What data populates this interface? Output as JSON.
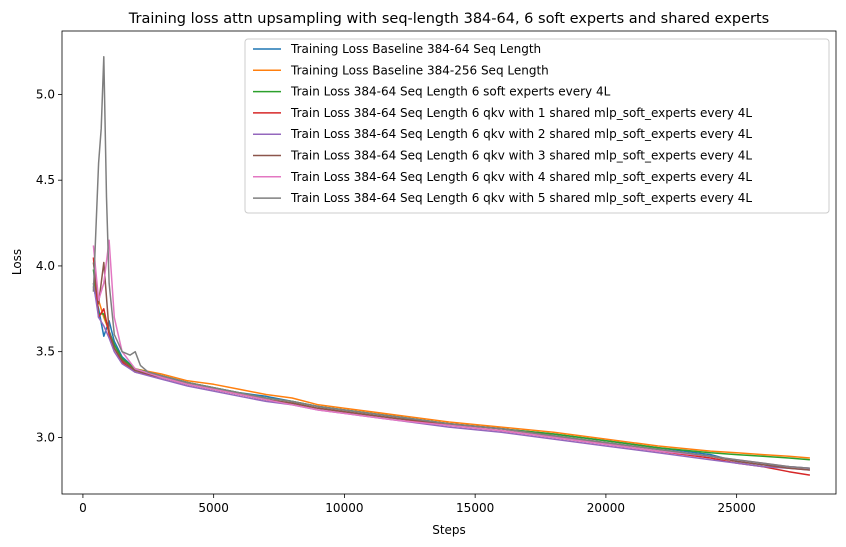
{
  "chart_data": {
    "type": "line",
    "title": "Training loss attn upsampling with seq-length 384-64, 6 soft experts and shared experts",
    "xlabel": "Steps",
    "ylabel": "Loss",
    "xlim": [
      -800,
      28800
    ],
    "ylim": [
      2.67,
      5.37
    ],
    "xticks": [
      0,
      5000,
      10000,
      15000,
      20000,
      25000
    ],
    "yticks": [
      3.0,
      3.5,
      4.0,
      4.5,
      5.0
    ],
    "xtick_labels": [
      "0",
      "5000",
      "10000",
      "15000",
      "20000",
      "25000"
    ],
    "ytick_labels": [
      "3.0",
      "3.5",
      "4.0",
      "4.5",
      "5.0"
    ],
    "grid": false,
    "legend_position": "top-right",
    "series": [
      {
        "name": "Training Loss Baseline 384-64 Seq Length",
        "color": "#1f77b4",
        "x": [
          400,
          600,
          800,
          1000,
          1200,
          1500,
          2000,
          3000,
          4000,
          5000,
          6000,
          7000,
          8000,
          9000,
          10000,
          12000,
          14000,
          16000,
          18000,
          20000,
          22000,
          24000,
          25000,
          26000,
          27000,
          27800
        ],
        "y": [
          3.88,
          3.75,
          3.59,
          3.68,
          3.56,
          3.47,
          3.4,
          3.36,
          3.32,
          3.29,
          3.26,
          3.24,
          3.21,
          3.18,
          3.16,
          3.12,
          3.08,
          3.05,
          3.02,
          2.98,
          2.94,
          2.9,
          2.86,
          2.84,
          2.83,
          2.82
        ]
      },
      {
        "name": "Training Loss Baseline 384-256 Seq Length",
        "color": "#ff7f0e",
        "x": [
          400,
          600,
          800,
          1000,
          1200,
          1500,
          2000,
          3000,
          4000,
          5000,
          6000,
          7000,
          8000,
          9000,
          10000,
          12000,
          14000,
          16000,
          18000,
          20000,
          22000,
          24000,
          25000,
          26000,
          27000,
          27800
        ],
        "y": [
          3.9,
          3.8,
          3.7,
          3.62,
          3.52,
          3.45,
          3.4,
          3.37,
          3.33,
          3.31,
          3.28,
          3.25,
          3.23,
          3.19,
          3.17,
          3.13,
          3.09,
          3.06,
          3.03,
          2.99,
          2.95,
          2.92,
          2.91,
          2.9,
          2.89,
          2.88
        ]
      },
      {
        "name": "Train Loss 384-64 Seq Length 6 soft experts every 4L",
        "color": "#2ca02c",
        "x": [
          400,
          600,
          800,
          1000,
          1200,
          1500,
          2000,
          3000,
          4000,
          5000,
          6000,
          7000,
          8000,
          9000,
          10000,
          12000,
          14000,
          16000,
          18000,
          20000,
          22000,
          24000,
          25000,
          26000,
          27000,
          27800
        ],
        "y": [
          3.98,
          3.72,
          3.72,
          3.62,
          3.54,
          3.46,
          3.4,
          3.36,
          3.32,
          3.29,
          3.26,
          3.23,
          3.21,
          3.18,
          3.16,
          3.12,
          3.08,
          3.05,
          3.02,
          2.98,
          2.94,
          2.91,
          2.9,
          2.89,
          2.88,
          2.87
        ]
      },
      {
        "name": "Train Loss 384-64 Seq Length 6 qkv with 1 shared mlp_soft_experts every 4L",
        "color": "#d62728",
        "x": [
          400,
          600,
          800,
          1000,
          1200,
          1500,
          2000,
          3000,
          4000,
          5000,
          6000,
          7000,
          8000,
          9000,
          10000,
          12000,
          14000,
          16000,
          18000,
          20000,
          22000,
          24000,
          25000,
          26000,
          27000,
          27800
        ],
        "y": [
          4.05,
          3.7,
          3.75,
          3.6,
          3.52,
          3.44,
          3.38,
          3.35,
          3.31,
          3.28,
          3.25,
          3.22,
          3.2,
          3.17,
          3.15,
          3.11,
          3.07,
          3.04,
          3.0,
          2.96,
          2.92,
          2.88,
          2.85,
          2.83,
          2.8,
          2.78
        ]
      },
      {
        "name": "Train Loss 384-64 Seq Length 6 qkv with 2 shared mlp_soft_experts every 4L",
        "color": "#9467bd",
        "x": [
          400,
          600,
          800,
          1000,
          1200,
          1500,
          2000,
          3000,
          4000,
          5000,
          6000,
          7000,
          8000,
          9000,
          10000,
          12000,
          14000,
          16000,
          18000,
          20000,
          22000,
          24000,
          25000,
          26000,
          27000,
          27800
        ],
        "y": [
          3.9,
          3.7,
          3.65,
          3.58,
          3.5,
          3.43,
          3.38,
          3.34,
          3.3,
          3.27,
          3.24,
          3.21,
          3.19,
          3.16,
          3.14,
          3.1,
          3.06,
          3.03,
          2.99,
          2.95,
          2.91,
          2.87,
          2.85,
          2.83,
          2.82,
          2.81
        ]
      },
      {
        "name": "Train Loss 384-64 Seq Length 6 qkv with 3 shared mlp_soft_experts every 4L",
        "color": "#8c564b",
        "x": [
          400,
          600,
          800,
          1000,
          1200,
          1500,
          2000,
          3000,
          4000,
          5000,
          6000,
          7000,
          8000,
          9000,
          10000,
          12000,
          14000,
          16000,
          18000,
          20000,
          22000,
          24000,
          25000,
          26000,
          27000,
          27800
        ],
        "y": [
          4.02,
          3.78,
          4.02,
          3.62,
          3.52,
          3.45,
          3.39,
          3.35,
          3.31,
          3.28,
          3.25,
          3.22,
          3.2,
          3.17,
          3.15,
          3.11,
          3.08,
          3.05,
          3.01,
          2.97,
          2.93,
          2.89,
          2.86,
          2.84,
          2.82,
          2.81
        ]
      },
      {
        "name": "Train Loss 384-64 Seq Length 6 qkv with 4 shared mlp_soft_experts every 4L",
        "color": "#e377c2",
        "x": [
          400,
          600,
          800,
          1000,
          1200,
          1500,
          2000,
          3000,
          4000,
          5000,
          6000,
          7000,
          8000,
          9000,
          10000,
          12000,
          14000,
          16000,
          18000,
          20000,
          22000,
          24000,
          25000,
          26000,
          27000,
          27800
        ],
        "y": [
          4.12,
          3.8,
          3.9,
          4.15,
          3.7,
          3.5,
          3.4,
          3.35,
          3.31,
          3.28,
          3.25,
          3.22,
          3.19,
          3.16,
          3.14,
          3.1,
          3.07,
          3.04,
          3.0,
          2.96,
          2.92,
          2.89,
          2.87,
          2.85,
          2.83,
          2.82
        ]
      },
      {
        "name": "Train Loss 384-64 Seq Length 6 qkv with 5 shared mlp_soft_experts every 4L",
        "color": "#7f7f7f",
        "x": [
          400,
          600,
          700,
          800,
          900,
          1000,
          1200,
          1500,
          1800,
          2000,
          2200,
          2500,
          3000,
          4000,
          5000,
          6000,
          7000,
          8000,
          9000,
          10000,
          12000,
          14000,
          16000,
          18000,
          20000,
          22000,
          24000,
          25000,
          26000,
          27000,
          27800
        ],
        "y": [
          3.85,
          4.6,
          4.8,
          5.22,
          4.4,
          3.9,
          3.6,
          3.5,
          3.48,
          3.5,
          3.42,
          3.38,
          3.36,
          3.32,
          3.29,
          3.26,
          3.23,
          3.21,
          3.18,
          3.16,
          3.12,
          3.08,
          3.05,
          3.01,
          2.97,
          2.93,
          2.89,
          2.87,
          2.85,
          2.83,
          2.82
        ]
      }
    ]
  }
}
